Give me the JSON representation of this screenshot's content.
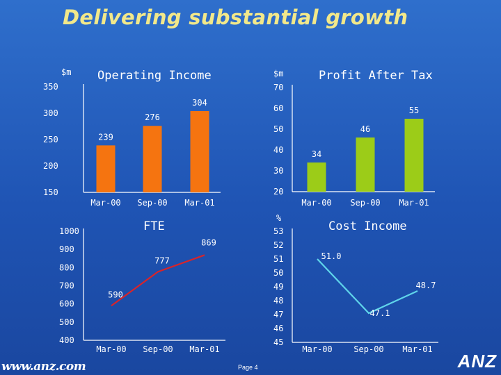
{
  "slide": {
    "title": "Delivering substantial growth",
    "page": "Page 4"
  },
  "footer": {
    "url": "www.anz.com",
    "logo": "ANZ"
  },
  "colors": {
    "orange": "#f57410",
    "green": "#9ccc18",
    "red": "#d8242a",
    "cyan": "#5fd4ea"
  },
  "chart_data": [
    {
      "id": "operating-income",
      "type": "bar",
      "title": "Operating Income",
      "unit": "$m",
      "categories": [
        "Mar-00",
        "Sep-00",
        "Mar-01"
      ],
      "values": [
        239,
        276,
        304
      ],
      "ylim": [
        150,
        350
      ],
      "yticks": [
        150,
        200,
        250,
        300,
        350
      ],
      "color": "#f57410"
    },
    {
      "id": "profit-after-tax",
      "type": "bar",
      "title": "Profit After Tax",
      "unit": "$m",
      "categories": [
        "Mar-00",
        "Sep-00",
        "Mar-01"
      ],
      "values": [
        34,
        46,
        55
      ],
      "ylim": [
        20,
        70
      ],
      "yticks": [
        20,
        30,
        40,
        50,
        60,
        70
      ],
      "color": "#9ccc18"
    },
    {
      "id": "fte",
      "type": "line",
      "title": "FTE",
      "unit": "",
      "categories": [
        "Mar-00",
        "Sep-00",
        "Mar-01"
      ],
      "values": [
        590,
        777,
        869
      ],
      "ylim": [
        400,
        1000
      ],
      "yticks": [
        400,
        500,
        600,
        700,
        800,
        900,
        1000
      ],
      "color": "#d8242a"
    },
    {
      "id": "cost-income",
      "type": "line",
      "title": "Cost Income",
      "unit": "%",
      "categories": [
        "Mar-00",
        "Sep-00",
        "Mar-01"
      ],
      "values": [
        51.0,
        47.1,
        48.7
      ],
      "labels": [
        "51.0",
        "47.1",
        "48.7"
      ],
      "ylim": [
        45,
        53
      ],
      "yticks": [
        45,
        46,
        47,
        48,
        49,
        50,
        51,
        52,
        53
      ],
      "color": "#5fd4ea"
    }
  ]
}
